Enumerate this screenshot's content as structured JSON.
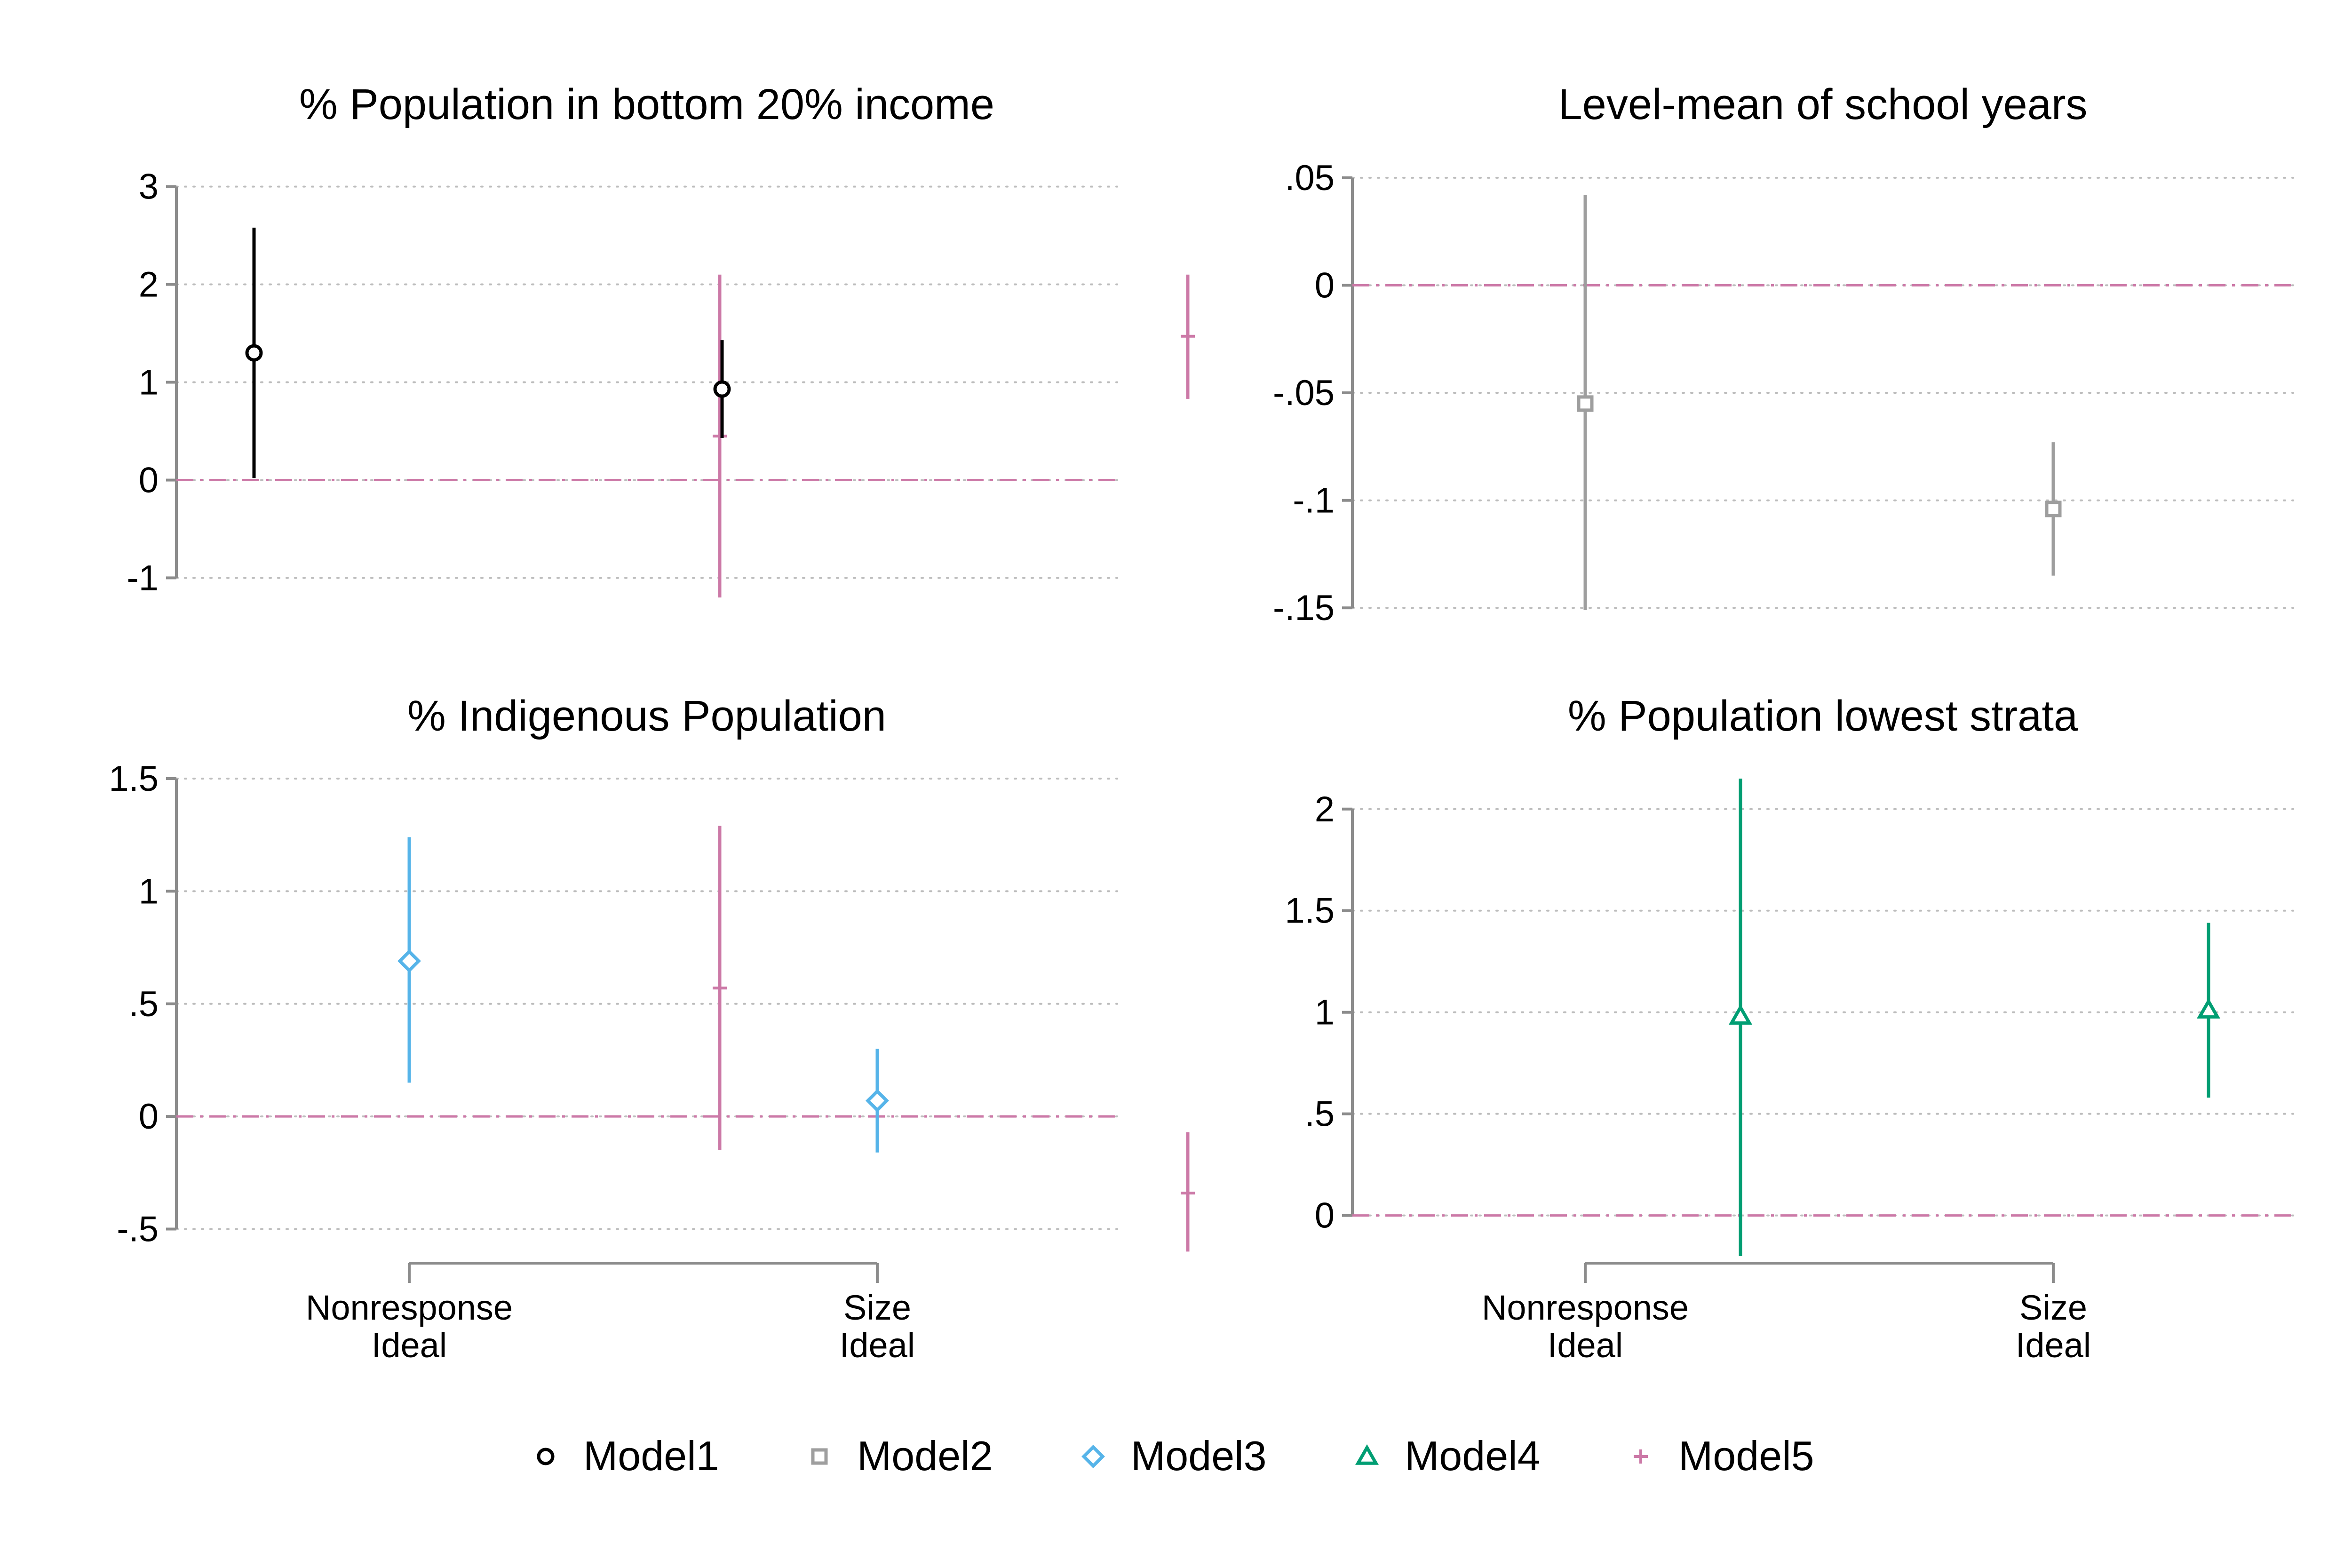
{
  "chart_data": [
    {
      "type": "scatter",
      "title": "% Population in bottom 20% income",
      "categories": [
        "Nonresponse\nIdeal",
        "Size\nIdeal"
      ],
      "show_category_labels": false,
      "ylim": [
        -1.2,
        3.2
      ],
      "yticks": [
        3,
        2,
        1,
        0,
        -1
      ],
      "ytick_labels": [
        "3",
        "2",
        "1",
        "0",
        "-1"
      ],
      "reference_line": 0,
      "points": [
        {
          "series": "Model1",
          "category": 0,
          "estimate": 1.3,
          "ci_low": 0.02,
          "ci_high": 2.58
        },
        {
          "series": "Model5",
          "category": 0,
          "estimate": 0.45,
          "ci_low": -1.2,
          "ci_high": 2.1
        },
        {
          "series": "Model1",
          "category": 1,
          "estimate": 0.93,
          "ci_low": 0.43,
          "ci_high": 1.43
        },
        {
          "series": "Model5",
          "category": 1,
          "estimate": 1.47,
          "ci_low": 0.83,
          "ci_high": 2.1
        }
      ]
    },
    {
      "type": "scatter",
      "title": "Level-mean of school years",
      "categories": [
        "Nonresponse\nIdeal",
        "Size\nIdeal"
      ],
      "show_category_labels": false,
      "ylim": [
        -0.155,
        0.055
      ],
      "yticks": [
        0.05,
        0,
        -0.05,
        -0.1,
        -0.15
      ],
      "ytick_labels": [
        ".05",
        "0",
        "-.05",
        "-.1",
        "-.15"
      ],
      "reference_line": 0,
      "points": [
        {
          "series": "Model2",
          "category": 0,
          "estimate": -0.055,
          "ci_low": -0.151,
          "ci_high": 0.042
        },
        {
          "series": "Model2",
          "category": 1,
          "estimate": -0.104,
          "ci_low": -0.135,
          "ci_high": -0.073
        }
      ]
    },
    {
      "type": "scatter",
      "title": "% Indigenous Population",
      "categories": [
        "Nonresponse\nIdeal",
        "Size\nIdeal"
      ],
      "show_category_labels": true,
      "ylim": [
        -0.62,
        1.5
      ],
      "yticks": [
        1.5,
        1,
        0.5,
        0,
        -0.5
      ],
      "ytick_labels": [
        "1.5",
        "1",
        ".5",
        "0",
        "-.5"
      ],
      "reference_line": 0,
      "points": [
        {
          "series": "Model3",
          "category": 0,
          "estimate": 0.69,
          "ci_low": 0.15,
          "ci_high": 1.24
        },
        {
          "series": "Model5",
          "category": 0,
          "estimate": 0.57,
          "ci_low": -0.15,
          "ci_high": 1.29
        },
        {
          "series": "Model3",
          "category": 1,
          "estimate": 0.07,
          "ci_low": -0.16,
          "ci_high": 0.3
        },
        {
          "series": "Model5",
          "category": 1,
          "estimate": -0.34,
          "ci_low": -0.6,
          "ci_high": -0.07
        }
      ]
    },
    {
      "type": "scatter",
      "title": "% Population lowest strata",
      "categories": [
        "Nonresponse\nIdeal",
        "Size\nIdeal"
      ],
      "show_category_labels": true,
      "ylim": [
        -0.2,
        2.15
      ],
      "yticks": [
        2,
        1.5,
        1,
        0.5,
        0
      ],
      "ytick_labels": [
        "2",
        "1.5",
        "1",
        ".5",
        "0"
      ],
      "reference_line": 0,
      "points": [
        {
          "series": "Model4",
          "category": 0,
          "estimate": 0.98,
          "ci_low": -0.2,
          "ci_high": 2.15
        },
        {
          "series": "Model4",
          "category": 1,
          "estimate": 1.01,
          "ci_low": 0.58,
          "ci_high": 1.44
        }
      ]
    }
  ],
  "series": [
    {
      "name": "Model1",
      "color": "#000000",
      "marker": "circle",
      "offset": -1
    },
    {
      "name": "Model2",
      "color": "#9e9e9e",
      "marker": "square",
      "offset": 0
    },
    {
      "name": "Model3",
      "color": "#56b4e9",
      "marker": "diamond",
      "offset": 0
    },
    {
      "name": "Model4",
      "color": "#009e73",
      "marker": "triangle",
      "offset": 1
    },
    {
      "name": "Model5",
      "color": "#cc79a7",
      "marker": "plus",
      "offset": 2
    }
  ],
  "reference_line_color": "#cc79a7",
  "legend": {
    "position": "bottom",
    "items": [
      "Model1",
      "Model2",
      "Model3",
      "Model4",
      "Model5"
    ]
  }
}
